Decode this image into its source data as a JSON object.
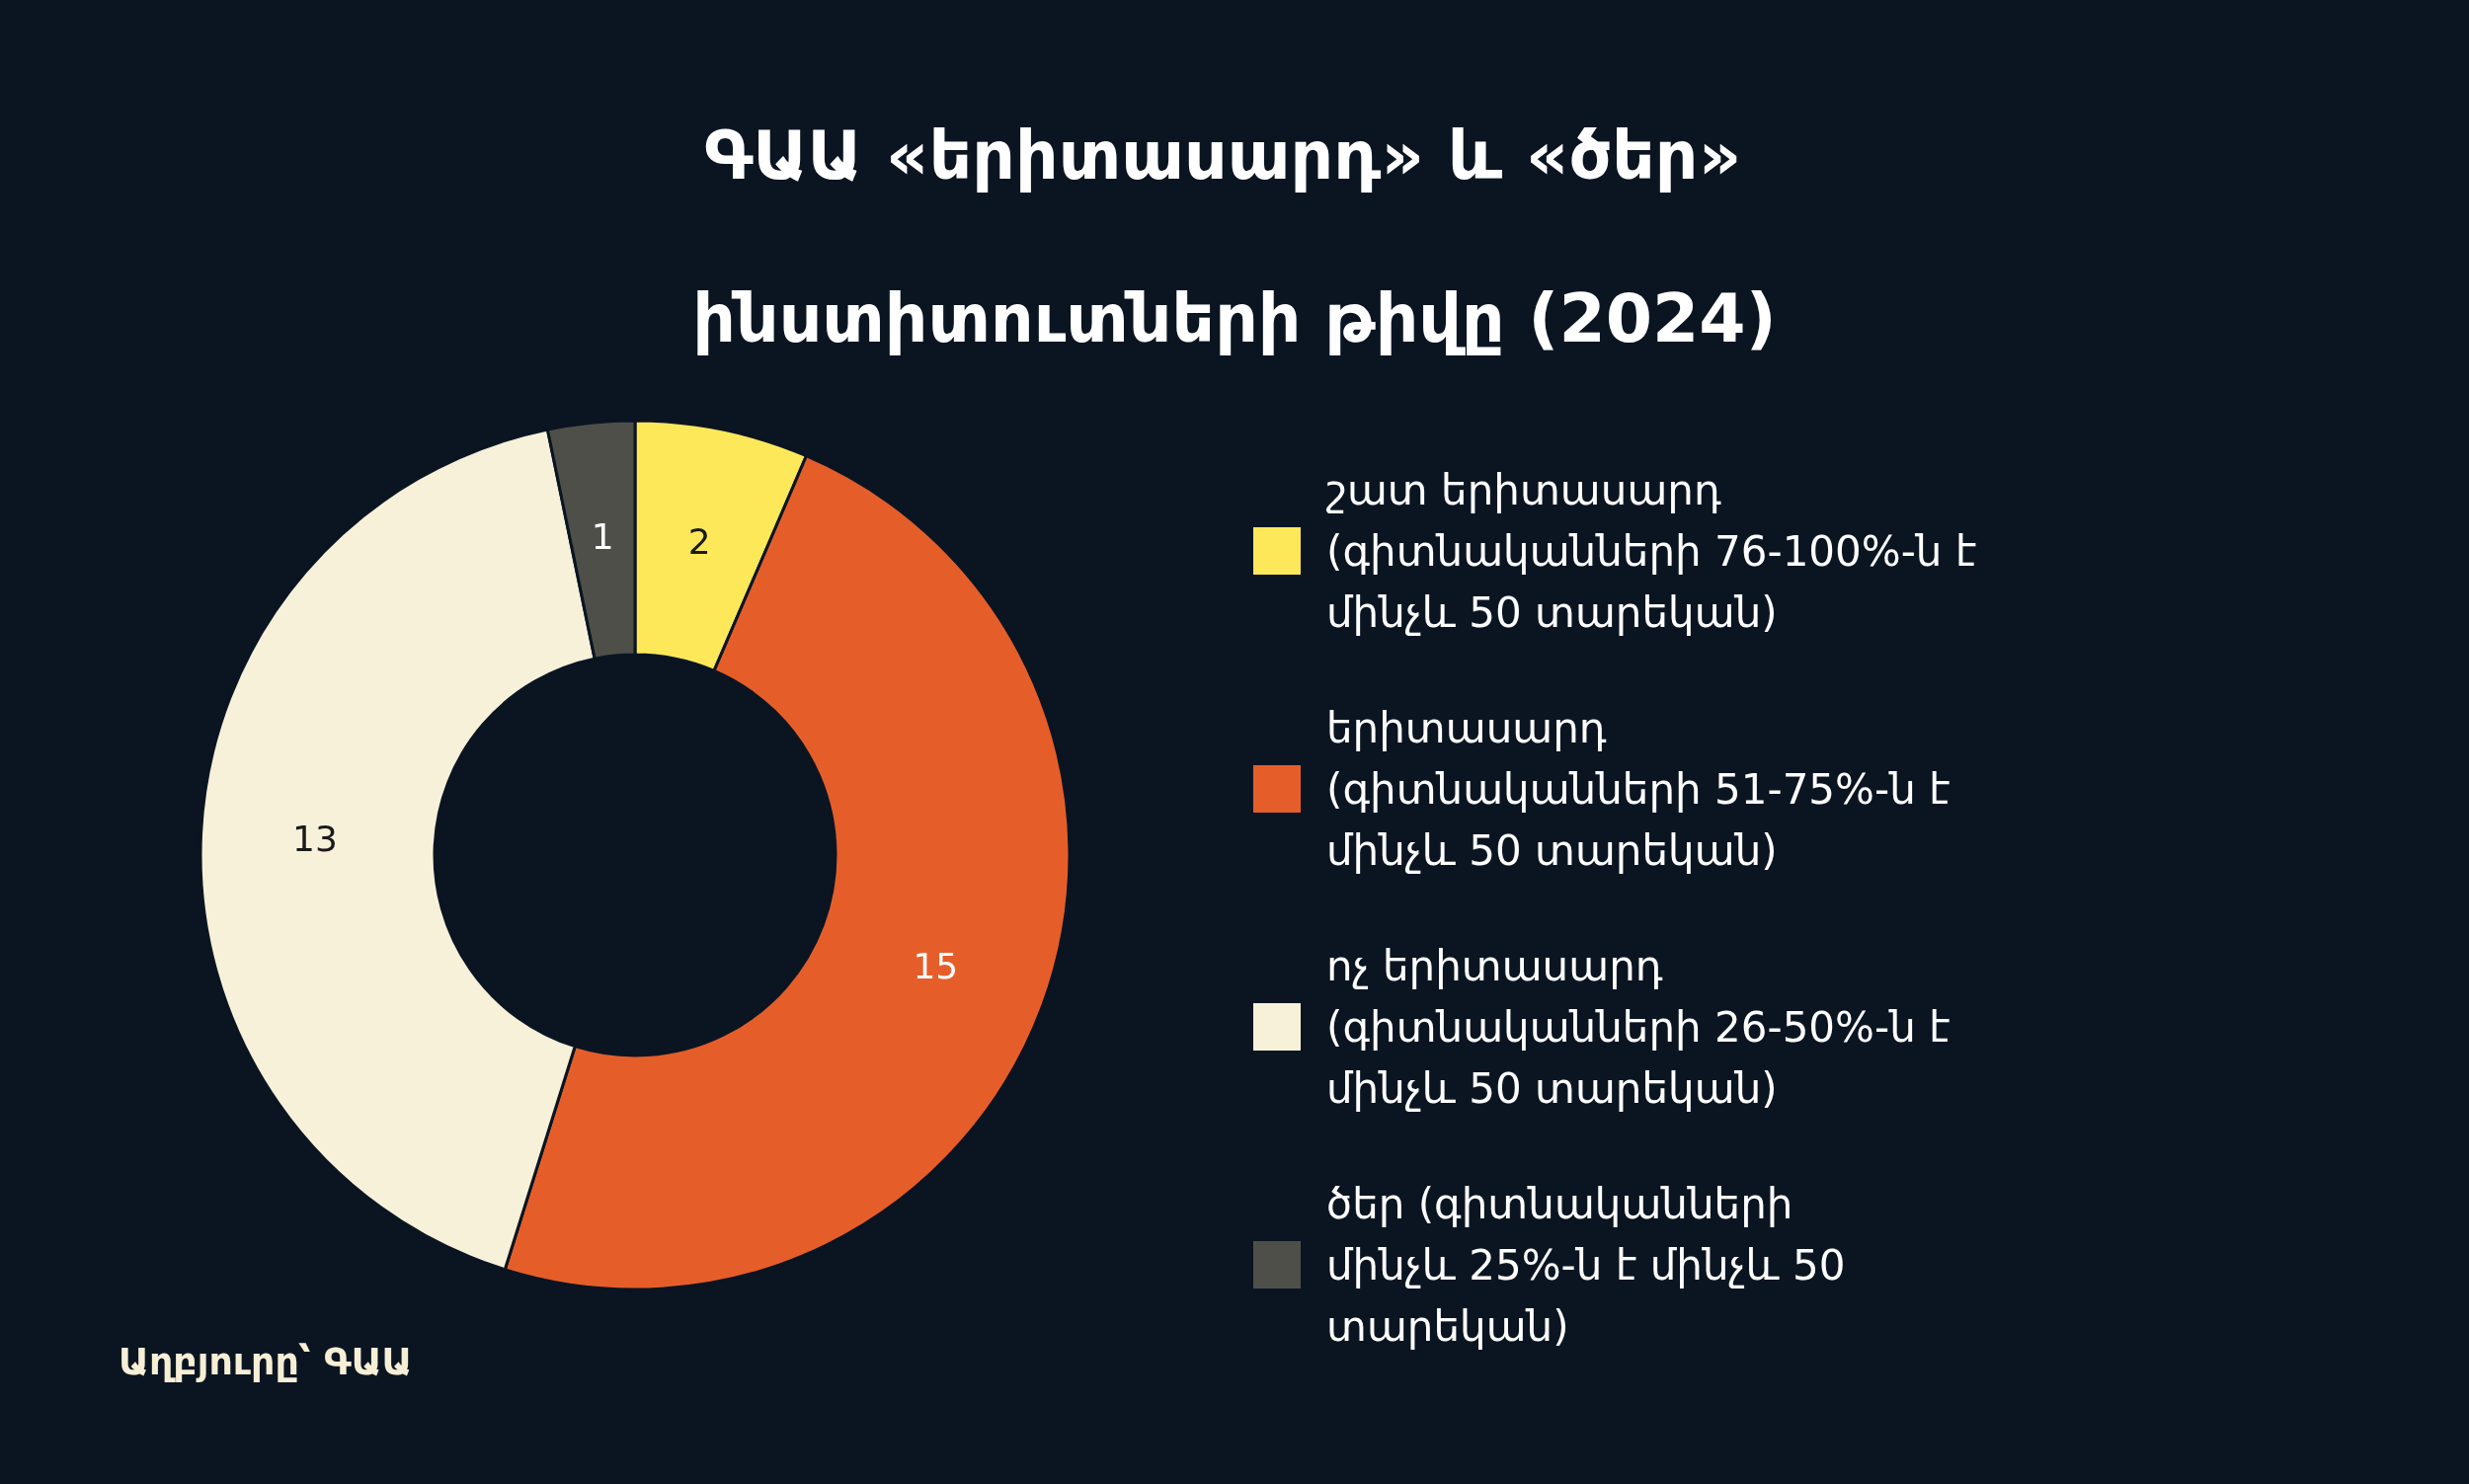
{
  "chart_data": {
    "type": "donut",
    "title": "ԳԱԱ «երիտասարդ» և «ծեր» ինստիտուտների թիվը (2024)",
    "categories": [
      "շատ երիտասարդ (գիտնականների 76-100%-ն է մինչև 50 տարեկան)",
      "երիտասարդ (գիտնականների 51-75%-ն է մինչև 50 տարեկան)",
      "ոչ երիտասարդ (գիտնականների 26-50%-ն է մինչև 50 տարեկան)",
      "ծեր (գիտնականների մինչև 25%-ն է մինչև 50 տարեկան)"
    ],
    "values": [
      2,
      15,
      13,
      1
    ],
    "colors": [
      "#fde85a",
      "#e55e2a",
      "#f7f1da",
      "#4f4f4a"
    ],
    "data_labels": true,
    "legend": "right",
    "annotations": [
      "Աղբյուրը՝ ԳԱԱ"
    ]
  }
}
